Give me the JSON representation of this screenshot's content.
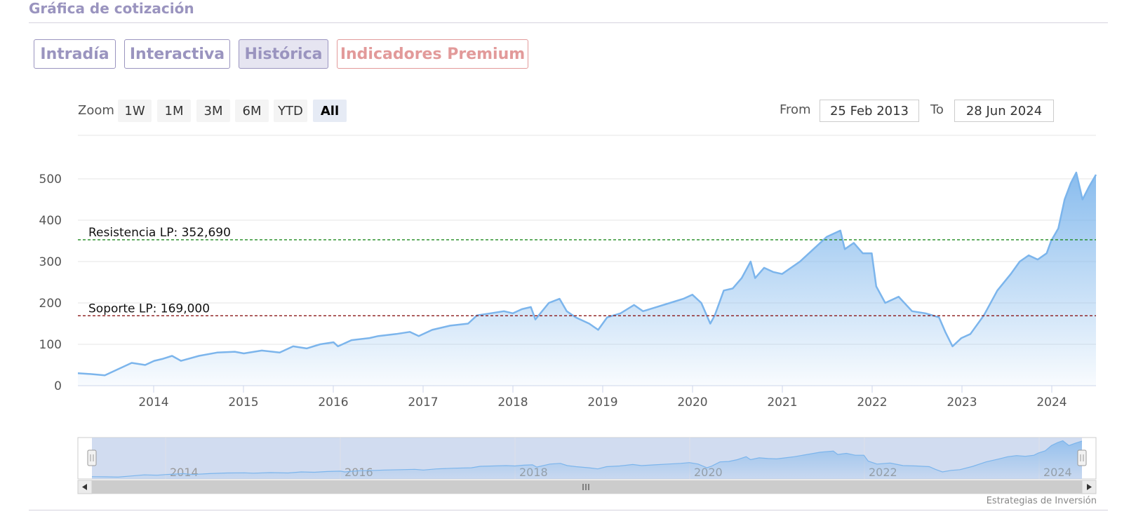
{
  "header": {
    "title": "Gráfica de cotización"
  },
  "tabs": [
    {
      "label": "Intradía"
    },
    {
      "label": "Interactiva"
    },
    {
      "label": "Histórica"
    },
    {
      "label": "Indicadores Premium"
    }
  ],
  "range_selector": {
    "zoom_label": "Zoom",
    "buttons": [
      "1W",
      "1M",
      "3M",
      "6M",
      "YTD",
      "All"
    ],
    "selected": "All",
    "from_label": "From",
    "from_value": "25 Feb 2013",
    "to_label": "To",
    "to_value": "28 Jun 2024"
  },
  "credits": "Estrategias de Inversión",
  "colors": {
    "series": "#7cb5ec",
    "resistance": "#1f8a1f",
    "support": "#8b1a1a",
    "navigator_mask": "#c6d3ec",
    "tab_text": "#9a94bf",
    "premium": "#e29a9a"
  },
  "chart_data": {
    "type": "area",
    "ylim": [
      0,
      500
    ],
    "y_ticks": [
      0,
      100,
      200,
      300,
      400,
      500
    ],
    "x_ticks": [
      "2014",
      "2015",
      "2016",
      "2017",
      "2018",
      "2019",
      "2020",
      "2021",
      "2022",
      "2023",
      "2024"
    ],
    "navigator_ticks": [
      "2014",
      "2016",
      "2018",
      "2020",
      "2022",
      "2024"
    ],
    "plot_lines": [
      {
        "label": "Resistencia LP: 352,690",
        "value": 352.69,
        "color": "#1f8a1f"
      },
      {
        "label": "Soporte LP: 169,000",
        "value": 169.0,
        "color": "#8b1a1a"
      }
    ],
    "series": [
      {
        "x": [
          2013.15,
          2013.3,
          2013.45,
          2013.6,
          2013.75,
          2013.9,
          2014.0,
          2014.1,
          2014.2,
          2014.3,
          2014.5,
          2014.7,
          2014.9,
          2015.0,
          2015.2,
          2015.4,
          2015.55,
          2015.7,
          2015.85,
          2016.0,
          2016.05,
          2016.2,
          2016.4,
          2016.5,
          2016.7,
          2016.85,
          2016.95,
          2017.1,
          2017.3,
          2017.5,
          2017.6,
          2017.75,
          2017.9,
          2018.0,
          2018.1,
          2018.2,
          2018.25,
          2018.4,
          2018.52,
          2018.6,
          2018.7,
          2018.85,
          2018.95,
          2019.05,
          2019.2,
          2019.35,
          2019.45,
          2019.6,
          2019.75,
          2019.9,
          2020.0,
          2020.1,
          2020.2,
          2020.25,
          2020.35,
          2020.45,
          2020.55,
          2020.65,
          2020.7,
          2020.8,
          2020.9,
          2021.0,
          2021.1,
          2021.2,
          2021.35,
          2021.5,
          2021.65,
          2021.7,
          2021.8,
          2021.9,
          2022.0,
          2022.05,
          2022.15,
          2022.3,
          2022.45,
          2022.6,
          2022.75,
          2022.82,
          2022.9,
          2023.0,
          2023.1,
          2023.25,
          2023.4,
          2023.55,
          2023.65,
          2023.75,
          2023.85,
          2023.95,
          2024.0,
          2024.08,
          2024.15,
          2024.22,
          2024.28,
          2024.35,
          2024.42,
          2024.5
        ],
        "y": [
          30,
          28,
          25,
          40,
          55,
          50,
          60,
          65,
          72,
          60,
          72,
          80,
          82,
          78,
          85,
          80,
          95,
          90,
          100,
          105,
          95,
          110,
          115,
          120,
          125,
          130,
          120,
          135,
          145,
          150,
          170,
          175,
          180,
          175,
          185,
          190,
          160,
          200,
          210,
          180,
          165,
          150,
          135,
          165,
          175,
          195,
          180,
          190,
          200,
          210,
          220,
          200,
          150,
          170,
          230,
          235,
          260,
          300,
          260,
          285,
          275,
          270,
          285,
          300,
          330,
          360,
          375,
          330,
          345,
          320,
          320,
          240,
          200,
          215,
          180,
          175,
          165,
          130,
          95,
          115,
          125,
          170,
          230,
          270,
          300,
          315,
          305,
          320,
          350,
          380,
          450,
          490,
          515,
          450,
          480,
          510
        ]
      }
    ]
  }
}
